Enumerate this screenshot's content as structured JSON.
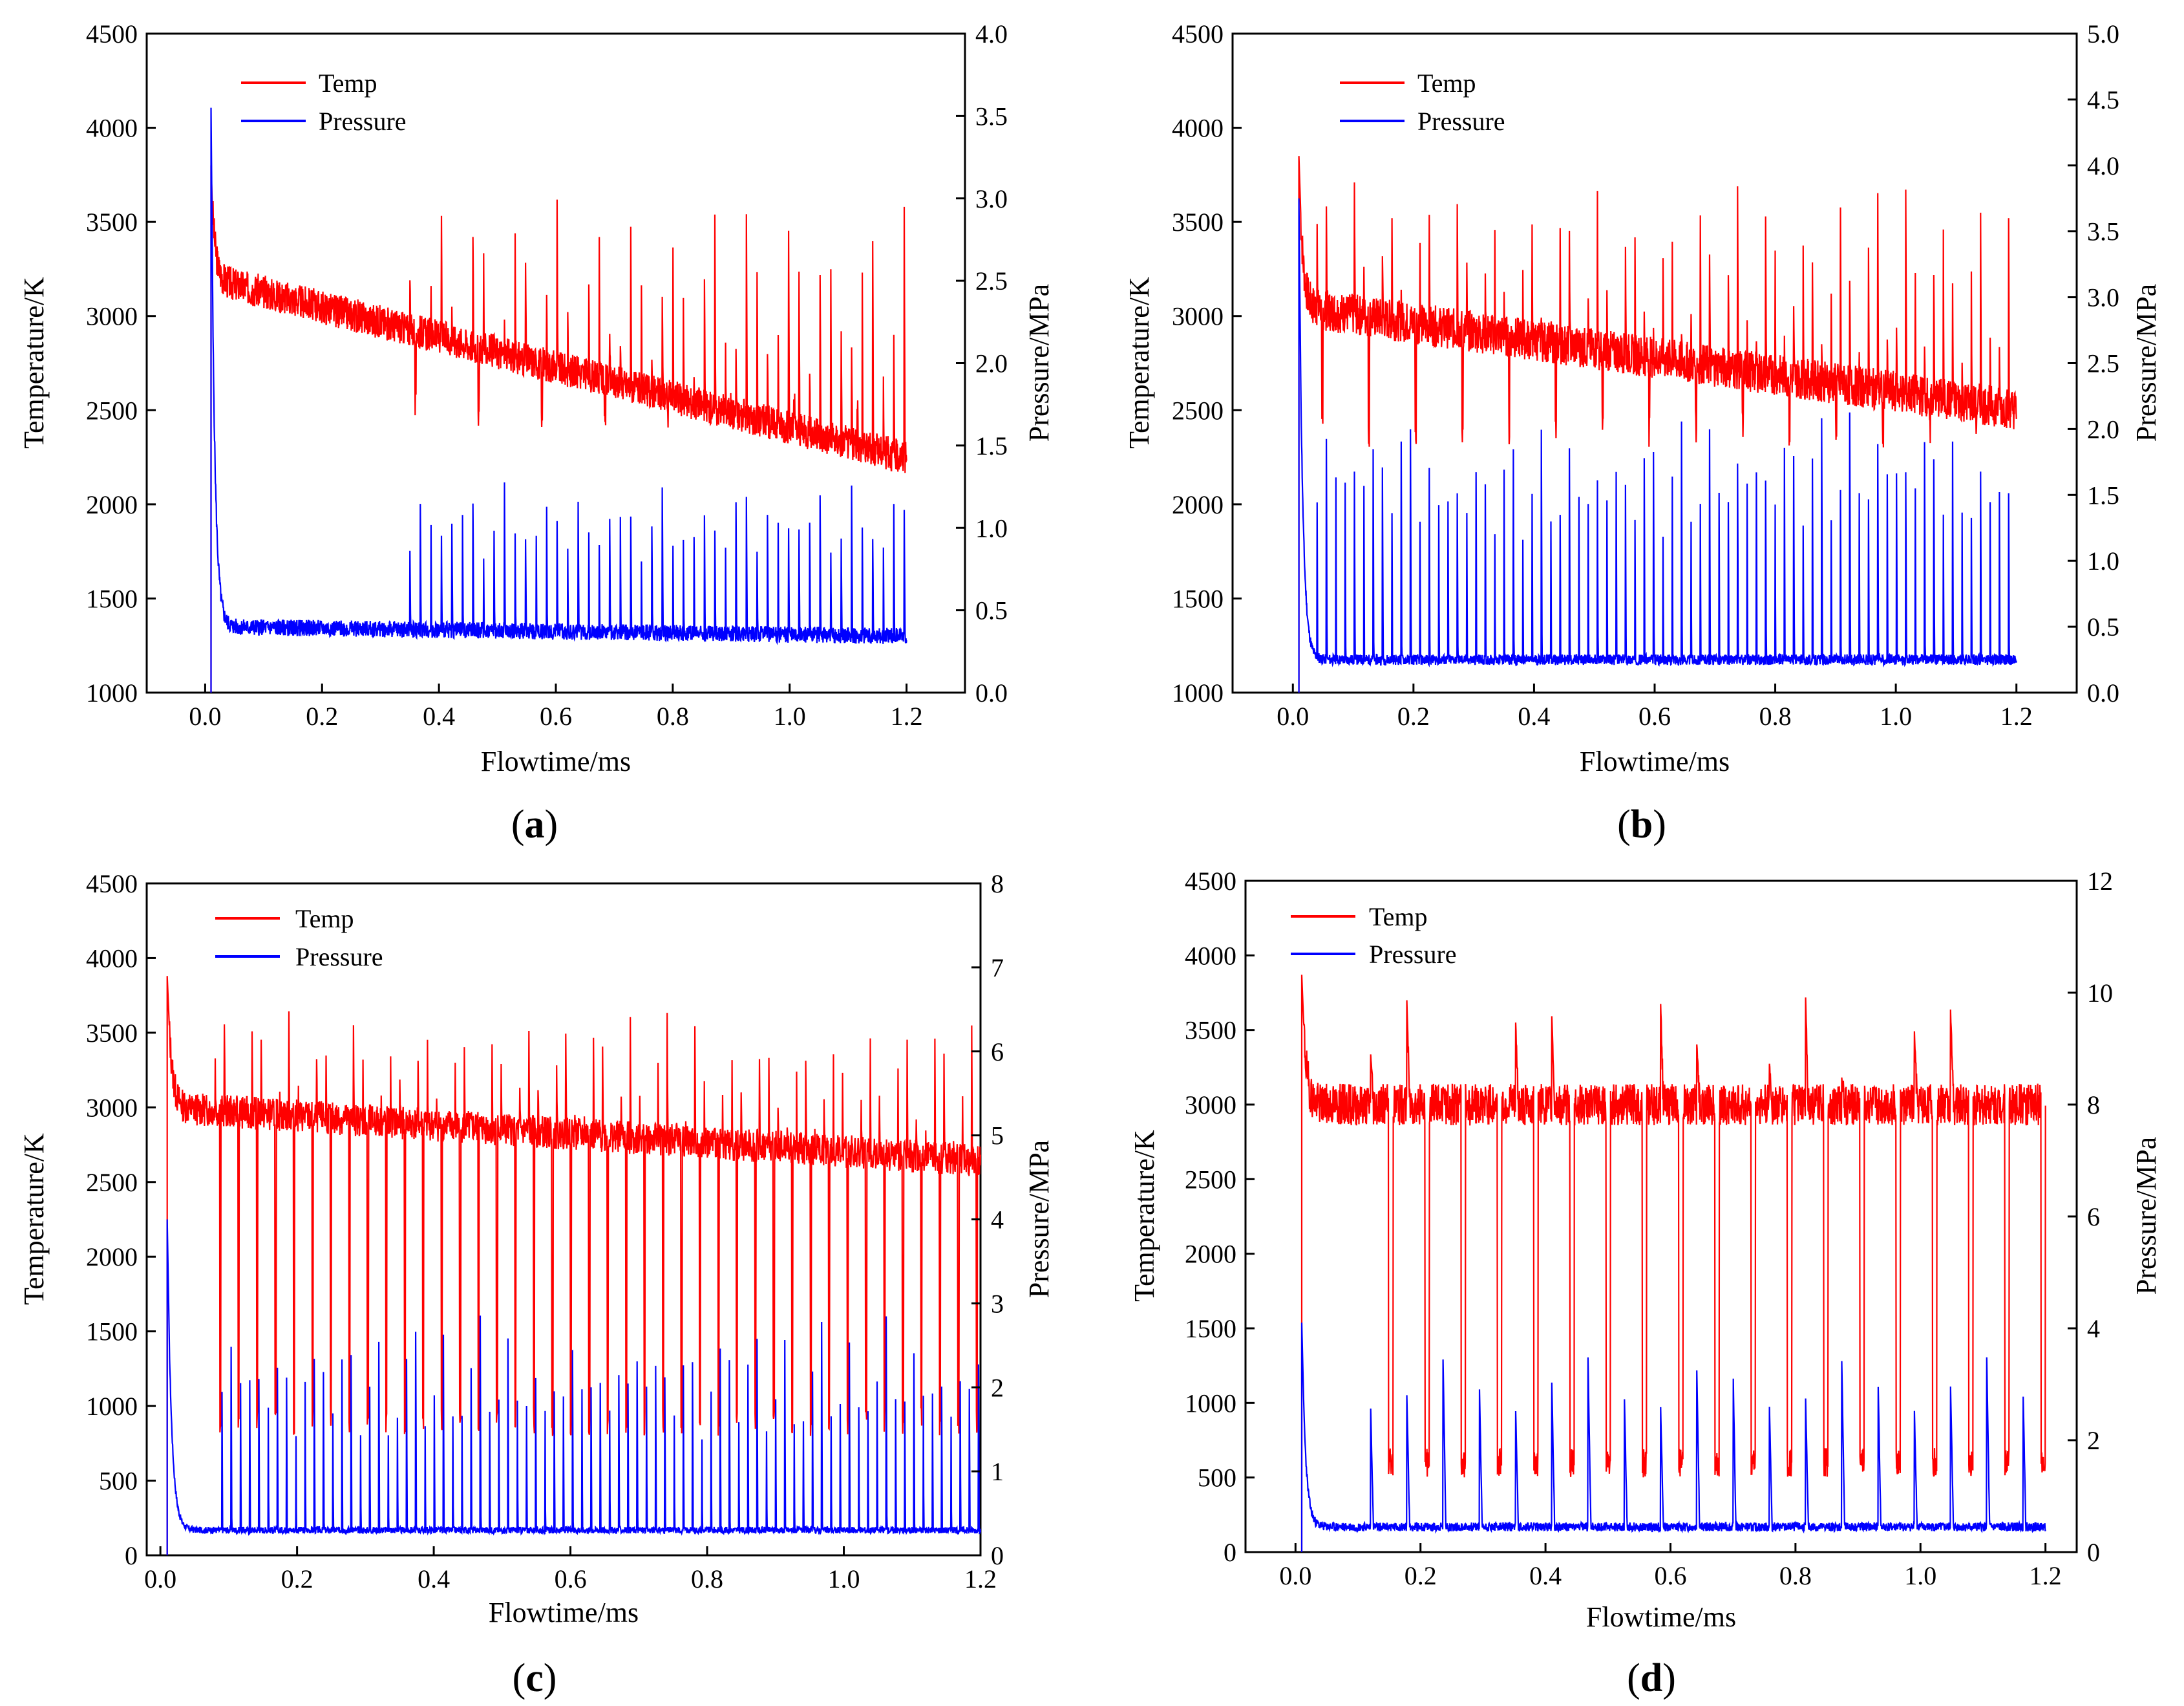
{
  "colors": {
    "temp": "#ff0000",
    "pressure": "#0000ff",
    "axis": "#000000"
  },
  "chart_data": [
    {
      "id": "a",
      "panel_label": "a",
      "type": "line",
      "xlabel": "Flowtime/ms",
      "ylabel": "Temperature/K",
      "y2label": "Pressure/MPa",
      "xlim": [
        -0.1,
        1.3
      ],
      "ylim": [
        1000,
        4500
      ],
      "y2lim": [
        0,
        4.0
      ],
      "xticks": [
        0.0,
        0.2,
        0.4,
        0.6,
        0.8,
        1.0,
        1.2
      ],
      "xtick_labels": [
        "0.0",
        "0.2",
        "0.4",
        "0.6",
        "0.8",
        "1.0",
        "1.2"
      ],
      "yticks": [
        1000,
        1500,
        2000,
        2500,
        3000,
        3500,
        4000,
        4500
      ],
      "ytick_labels": [
        "1000",
        "1500",
        "2000",
        "2500",
        "3000",
        "3500",
        "4000",
        "4500"
      ],
      "y2ticks": [
        0,
        0.5,
        1.0,
        1.5,
        2.0,
        2.5,
        3.0,
        3.5,
        4.0
      ],
      "y2tick_labels": [
        "0.0",
        "0.5",
        "1.0",
        "1.5",
        "2.0",
        "2.5",
        "3.0",
        "3.5",
        "4.0"
      ],
      "legend": [
        "Temp",
        "Pressure"
      ],
      "legend_position": "top-left",
      "series": [
        {
          "name": "Temp",
          "axis": "left",
          "t_start": 0.01,
          "t_end": 1.2,
          "peak": 3800,
          "baseline": 3200,
          "drift": -0.25,
          "noise": 90,
          "spike_start": 0.35,
          "spike_period": 0.018,
          "spike_height": 3650,
          "dip_depth": 2500,
          "dip_every": 6,
          "seed": 3
        },
        {
          "name": "Pressure",
          "axis": "right",
          "t_start": 0.01,
          "t_end": 1.2,
          "peak": 3.55,
          "baseline": 0.4,
          "drift": -0.12,
          "noise": 0.05,
          "spike_start": 0.35,
          "spike_period": 0.018,
          "spike_height": 1.3,
          "seed": 5
        }
      ]
    },
    {
      "id": "b",
      "panel_label": "b",
      "type": "line",
      "xlabel": "Flowtime/ms",
      "ylabel": "Temperature/K",
      "y2label": "Pressure/MPa",
      "xlim": [
        -0.1,
        1.3
      ],
      "ylim": [
        1000,
        4500
      ],
      "y2lim": [
        0,
        5.0
      ],
      "xticks": [
        0.0,
        0.2,
        0.4,
        0.6,
        0.8,
        1.0,
        1.2
      ],
      "xtick_labels": [
        "0.0",
        "0.2",
        "0.4",
        "0.6",
        "0.8",
        "1.0",
        "1.2"
      ],
      "yticks": [
        1000,
        1500,
        2000,
        2500,
        3000,
        3500,
        4000,
        4500
      ],
      "ytick_labels": [
        "1000",
        "1500",
        "2000",
        "2500",
        "3000",
        "3500",
        "4000",
        "4500"
      ],
      "y2ticks": [
        0,
        0.5,
        1.0,
        1.5,
        2.0,
        2.5,
        3.0,
        3.5,
        4.0,
        4.5,
        5.0
      ],
      "y2tick_labels": [
        "0.0",
        "0.5",
        "1.0",
        "1.5",
        "2.0",
        "2.5",
        "3.0",
        "3.5",
        "4.0",
        "4.5",
        "5.0"
      ],
      "legend": [
        "Temp",
        "Pressure"
      ],
      "legend_position": "top-left",
      "series": [
        {
          "name": "Temp",
          "axis": "left",
          "t_start": 0.01,
          "t_end": 1.2,
          "peak": 3850,
          "baseline": 3050,
          "drift": -0.15,
          "noise": 110,
          "spike_start": 0.04,
          "spike_period": 0.0155,
          "spike_height": 3750,
          "dip_depth": 2400,
          "dip_every": 5,
          "seed": 7
        },
        {
          "name": "Pressure",
          "axis": "right",
          "t_start": 0.01,
          "t_end": 1.2,
          "peak": 3.75,
          "baseline": 0.25,
          "drift": 0.0,
          "noise": 0.04,
          "spike_start": 0.04,
          "spike_period": 0.0155,
          "spike_height": 2.2,
          "seed": 11
        }
      ]
    },
    {
      "id": "c",
      "panel_label": "c",
      "type": "line",
      "xlabel": "Flowtime/ms",
      "ylabel": "Temperature/K",
      "y2label": "Pressure/MPa",
      "xlim": [
        -0.02,
        1.2
      ],
      "ylim": [
        0,
        4500
      ],
      "y2lim": [
        0,
        8
      ],
      "xticks": [
        0.0,
        0.2,
        0.4,
        0.6,
        0.8,
        1.0,
        1.2
      ],
      "xtick_labels": [
        "0.0",
        "0.2",
        "0.4",
        "0.6",
        "0.8",
        "1.0",
        "1.2"
      ],
      "yticks": [
        0,
        500,
        1000,
        1500,
        2000,
        2500,
        3000,
        3500,
        4000,
        4500
      ],
      "ytick_labels": [
        "0",
        "500",
        "1000",
        "1500",
        "2000",
        "2500",
        "3000",
        "3500",
        "4000",
        "4500"
      ],
      "y2ticks": [
        0,
        1,
        2,
        3,
        4,
        5,
        6,
        7,
        8
      ],
      "y2tick_labels": [
        "0",
        "1",
        "2",
        "3",
        "4",
        "5",
        "6",
        "7",
        "8"
      ],
      "legend": [
        "Temp",
        "Pressure"
      ],
      "legend_position": "top-left",
      "series": [
        {
          "name": "Temp",
          "axis": "left",
          "t_start": 0.01,
          "t_end": 1.2,
          "peak": 3880,
          "baseline": 3000,
          "drift": -0.1,
          "noise": 110,
          "spike_start": 0.08,
          "spike_period": 0.0135,
          "spike_height": 3700,
          "dip_depth": 900,
          "dip_every": 2,
          "seed": 13
        },
        {
          "name": "Pressure",
          "axis": "right",
          "t_start": 0.01,
          "t_end": 1.2,
          "peak": 4.0,
          "baseline": 0.3,
          "drift": 0.0,
          "noise": 0.04,
          "spike_start": 0.09,
          "spike_period": 0.0135,
          "spike_height": 2.9,
          "seed": 17
        }
      ]
    },
    {
      "id": "d",
      "panel_label": "d",
      "type": "line",
      "xlabel": "Flowtime/ms",
      "ylabel": "Temperature/K",
      "y2label": "Pressure/MPa",
      "xlim": [
        -0.08,
        1.25
      ],
      "ylim": [
        0,
        4500
      ],
      "y2lim": [
        0,
        12
      ],
      "xticks": [
        0.0,
        0.2,
        0.4,
        0.6,
        0.8,
        1.0,
        1.2
      ],
      "xtick_labels": [
        "0.0",
        "0.2",
        "0.4",
        "0.6",
        "0.8",
        "1.0",
        "1.2"
      ],
      "yticks": [
        0,
        500,
        1000,
        1500,
        2000,
        2500,
        3000,
        3500,
        4000,
        4500
      ],
      "ytick_labels": [
        "0",
        "500",
        "1000",
        "1500",
        "2000",
        "2500",
        "3000",
        "3500",
        "4000",
        "4500"
      ],
      "y2ticks": [
        0,
        2,
        4,
        6,
        8,
        10,
        12
      ],
      "y2tick_labels": [
        "0",
        "2",
        "4",
        "6",
        "8",
        "10",
        "12"
      ],
      "legend": [
        "Temp",
        "Pressure"
      ],
      "legend_position": "top-left",
      "series": [
        {
          "name": "Temp",
          "axis": "left",
          "t_start": 0.01,
          "t_end": 1.2,
          "peak": 3870,
          "baseline": 3000,
          "drift": 0.0,
          "noise": 140,
          "spike_start": 0.12,
          "spike_period": 0.058,
          "spike_height": 3750,
          "dip_depth": 600,
          "dip_every": 1,
          "seed": 19
        },
        {
          "name": "Pressure",
          "axis": "right",
          "t_start": 0.01,
          "t_end": 1.2,
          "peak": 4.1,
          "baseline": 0.45,
          "drift": 0.0,
          "noise": 0.08,
          "spike_start": 0.12,
          "spike_period": 0.058,
          "spike_height": 3.5,
          "seed": 23
        }
      ]
    }
  ]
}
